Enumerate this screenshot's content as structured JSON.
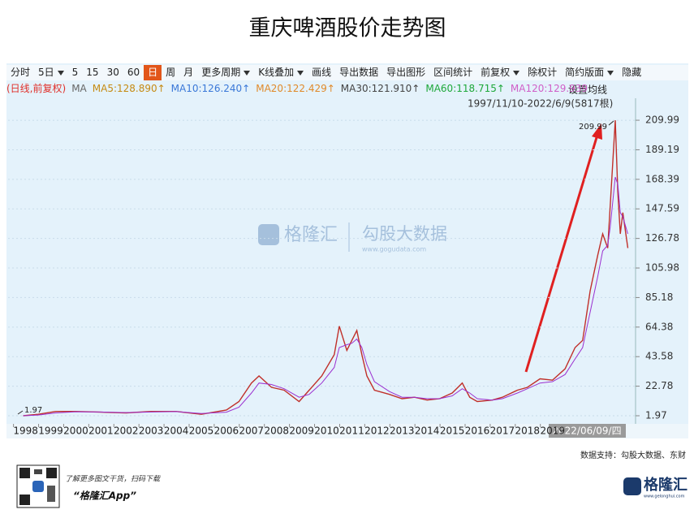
{
  "title": "重庆啤酒股价走势图",
  "toolbar": [
    {
      "text": "分时"
    },
    {
      "text": "5日",
      "dropdown": true
    },
    {
      "text": "5"
    },
    {
      "text": "15"
    },
    {
      "text": "30"
    },
    {
      "text": "60"
    },
    {
      "text": "日",
      "active": true
    },
    {
      "text": "周"
    },
    {
      "text": "月"
    },
    {
      "text": "更多周期",
      "dropdown": true
    },
    {
      "text": "K线叠加",
      "dropdown": true
    },
    {
      "text": "画线"
    },
    {
      "text": "导出数据"
    },
    {
      "text": "导出图形"
    },
    {
      "text": "区间统计"
    },
    {
      "text": "前复权",
      "dropdown": true
    },
    {
      "text": "除权计"
    },
    {
      "text": "简约版面",
      "dropdown": true
    },
    {
      "text": "隐藏"
    }
  ],
  "indicators": [
    {
      "text": "(日线,前复权)",
      "color": "#e0302a"
    },
    {
      "text": "MA",
      "color": "#666666"
    },
    {
      "text": "MA5:128.890↑",
      "color": "#c58a12"
    },
    {
      "text": "MA10:126.240↑",
      "color": "#3a78d8"
    },
    {
      "text": "MA20:122.429↑",
      "color": "#e08a2a"
    },
    {
      "text": "MA30:121.910↑",
      "color": "#444444"
    },
    {
      "text": "MA60:118.715↑",
      "color": "#1ea83a"
    },
    {
      "text": "MA120:129.939",
      "color": "#d060c8"
    }
  ],
  "ma_settings": "设置均线",
  "range_label": "1997/11/10-2022/6/9(5817根)",
  "cursor_label": "2022/06/09/四",
  "watermark": {
    "brand": "格隆汇",
    "partner": "勾股大数据",
    "url": "www.gogudata.com"
  },
  "source": "数据支持：勾股大数据、东财",
  "footer": {
    "promo": "了解更多图文干货，扫码下载",
    "app": "“格隆汇App”",
    "logo": "格隆汇",
    "logo_url": "www.gelonghui.com"
  },
  "chart_data": {
    "type": "line",
    "x": [
      1997.9,
      1998.5,
      1999.2,
      2000,
      2001,
      2002,
      2003,
      2004,
      2005,
      2006,
      2006.5,
      2007,
      2007.3,
      2007.8,
      2008.3,
      2008.9,
      2009.3,
      2009.8,
      2010.3,
      2010.5,
      2010.8,
      2011,
      2011.2,
      2011.4,
      2011.6,
      2011.9,
      2012.5,
      2013,
      2013.5,
      2014,
      2014.5,
      2015,
      2015.4,
      2015.7,
      2016,
      2016.6,
      2017,
      2017.6,
      2018,
      2018.5,
      2019,
      2019.5,
      2019.9,
      2020.2,
      2020.5,
      2020.8,
      2021.0,
      2021.2,
      2021.3,
      2021.5,
      2021.6,
      2021.7,
      2021.8,
      2022.0
    ],
    "series": [
      {
        "color": "#c0302a",
        "values": [
          2,
          3,
          5,
          5,
          4.5,
          4,
          5,
          5,
          3,
          6,
          12,
          25,
          30,
          22,
          20,
          12,
          20,
          30,
          45,
          65,
          48,
          55,
          62,
          45,
          30,
          20,
          17,
          14,
          15,
          13,
          14,
          18,
          25,
          15,
          12,
          13,
          15,
          20,
          22,
          28,
          27,
          35,
          50,
          55,
          90,
          115,
          130,
          120,
          150,
          209.99,
          160,
          130,
          145,
          120
        ]
      },
      {
        "color": "#9b30d0",
        "values": [
          2,
          2.5,
          4,
          4.8,
          4.6,
          4.2,
          4.6,
          4.9,
          3.6,
          4.5,
          8,
          18,
          25,
          24,
          21,
          15,
          17,
          25,
          36,
          50,
          52,
          53,
          56,
          50,
          38,
          26,
          19,
          15,
          15,
          14,
          14,
          16,
          21,
          18,
          14,
          13,
          14,
          18,
          21,
          25,
          26,
          31,
          42,
          50,
          75,
          100,
          118,
          122,
          135,
          170,
          165,
          145,
          142,
          130
        ]
      }
    ],
    "xlim": [
      1997.3,
      2022.05
    ],
    "xticks": [
      1998,
      1999,
      2000,
      2001,
      2002,
      2003,
      2004,
      2005,
      2006,
      2007,
      2008,
      2009,
      2010,
      2011,
      2012,
      2013,
      2014,
      2015,
      2016,
      2017,
      2018,
      2019
    ],
    "ylim": [
      -2.6,
      218.6
    ],
    "yticks": [
      1.97,
      22.78,
      43.58,
      64.38,
      85.18,
      105.98,
      126.78,
      147.59,
      168.39,
      189.19,
      209.99
    ],
    "max_label": 209.99,
    "min_label": 1.97,
    "grid": true
  }
}
